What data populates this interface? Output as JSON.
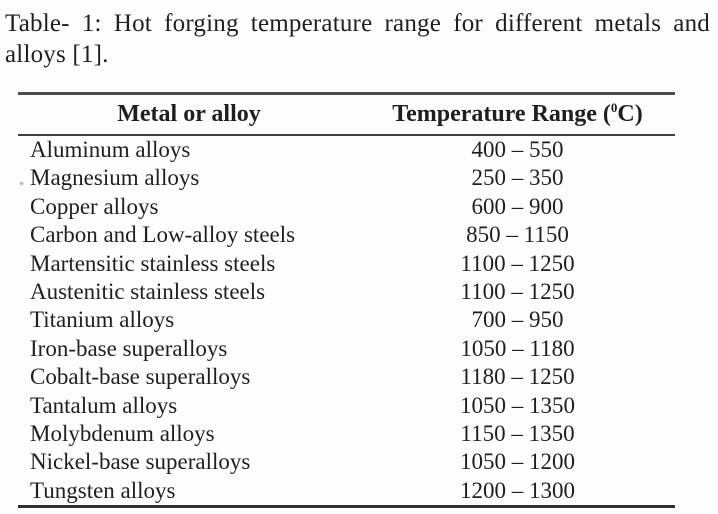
{
  "caption": {
    "line1": "Table- 1: Hot forging temperature range for different metals and",
    "line2": "alloys [1]."
  },
  "table": {
    "col1_header": "Metal or alloy",
    "col2_header": {
      "prefix": "Temperature Range (",
      "superscript": "0",
      "suffix": "C)"
    },
    "rows": [
      {
        "metal": "Aluminum alloys",
        "range": "400 – 550"
      },
      {
        "metal": "Magnesium alloys",
        "range": "250 – 350"
      },
      {
        "metal": "Copper alloys",
        "range": "600 – 900"
      },
      {
        "metal": "Carbon and Low-alloy steels",
        "range": "850 – 1150"
      },
      {
        "metal": "Martensitic stainless steels",
        "range": "1100 – 1250"
      },
      {
        "metal": "Austenitic stainless steels",
        "range": "1100 – 1250"
      },
      {
        "metal": "Titanium alloys",
        "range": "700 – 950"
      },
      {
        "metal": "Iron-base superalloys",
        "range": "1050 – 1180"
      },
      {
        "metal": "Cobalt-base superalloys",
        "range": "1180 – 1250"
      },
      {
        "metal": "Tantalum alloys",
        "range": "1050 – 1350"
      },
      {
        "metal": "Molybdenum alloys",
        "range": "1150 – 1350"
      },
      {
        "metal": "Nickel-base superalloys",
        "range": "1050 – 1200"
      },
      {
        "metal": "Tungsten alloys",
        "range": "1200 – 1300"
      }
    ]
  },
  "chart_data": {
    "type": "table",
    "title": "Table- 1: Hot forging temperature range for different metals and alloys [1].",
    "columns": [
      "Metal or alloy",
      "Temperature Range (0C)"
    ],
    "rows": [
      {
        "metal": "Aluminum alloys",
        "temp_min": 400,
        "temp_max": 550
      },
      {
        "metal": "Magnesium alloys",
        "temp_min": 250,
        "temp_max": 350
      },
      {
        "metal": "Copper alloys",
        "temp_min": 600,
        "temp_max": 900
      },
      {
        "metal": "Carbon and Low-alloy steels",
        "temp_min": 850,
        "temp_max": 1150
      },
      {
        "metal": "Martensitic stainless steels",
        "temp_min": 1100,
        "temp_max": 1250
      },
      {
        "metal": "Austenitic stainless steels",
        "temp_min": 1100,
        "temp_max": 1250
      },
      {
        "metal": "Titanium alloys",
        "temp_min": 700,
        "temp_max": 950
      },
      {
        "metal": "Iron-base superalloys",
        "temp_min": 1050,
        "temp_max": 1180
      },
      {
        "metal": "Cobalt-base superalloys",
        "temp_min": 1180,
        "temp_max": 1250
      },
      {
        "metal": "Tantalum alloys",
        "temp_min": 1050,
        "temp_max": 1350
      },
      {
        "metal": "Molybdenum alloys",
        "temp_min": 1150,
        "temp_max": 1350
      },
      {
        "metal": "Nickel-base superalloys",
        "temp_min": 1050,
        "temp_max": 1200
      },
      {
        "metal": "Tungsten alloys",
        "temp_min": 1200,
        "temp_max": 1300
      }
    ]
  },
  "colors": {
    "background": "#fdfdfd",
    "text": "#1f1f1f",
    "rule_top": "#4d4d4d",
    "rule_header": "#404040",
    "rule_bottom": "#303030"
  }
}
